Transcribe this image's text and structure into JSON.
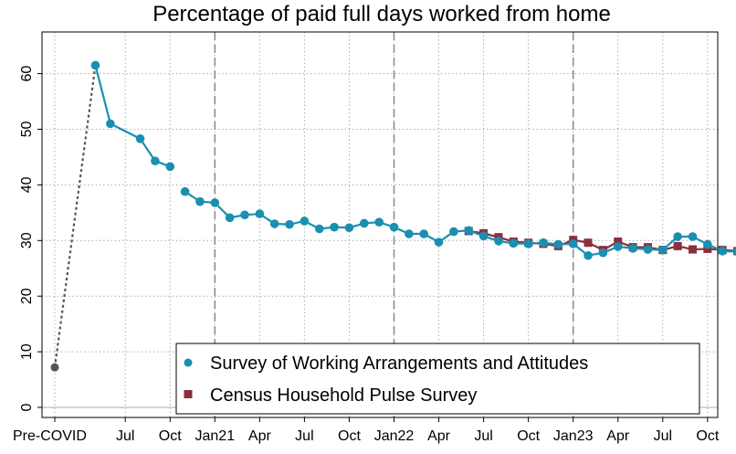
{
  "chart_data": {
    "type": "line",
    "title": "Percentage of paid full days worked from home",
    "xlabel": "",
    "ylabel": "",
    "ylim": [
      0,
      65
    ],
    "yticks": [
      0,
      10,
      20,
      30,
      40,
      50,
      60
    ],
    "grid": true,
    "legend_position": "bottom-right",
    "x_tick_labels": [
      "Pre-COVID",
      "Jul",
      "Oct",
      "Jan21",
      "Apr",
      "Jul",
      "Oct",
      "Jan22",
      "Apr",
      "Jul",
      "Oct",
      "Jan23",
      "Apr",
      "Jul",
      "Oct"
    ],
    "year_dividers": [
      "Jan21",
      "Jan22",
      "Jan23"
    ],
    "pre_covid": {
      "label": "Pre-COVID",
      "value": 7.2,
      "color": "#555555"
    },
    "series": [
      {
        "name": "Survey of Working Arrangements and Attitudes",
        "color": "#1a8fb0",
        "marker": "circle",
        "segments": [
          [
            {
              "x": "2020-05-15",
              "y": 61.5
            },
            {
              "x": "2020-06-15",
              "y": 51.0
            },
            {
              "x": "2020-08-15",
              "y": 48.3
            },
            {
              "x": "2020-09-15",
              "y": 44.3
            },
            {
              "x": "2020-10-15",
              "y": 43.3
            }
          ],
          [
            {
              "x": "2020-11-15",
              "y": 38.8
            },
            {
              "x": "2020-12-15",
              "y": 37.0
            },
            {
              "x": "2021-01-15",
              "y": 36.8
            },
            {
              "x": "2021-02-15",
              "y": 34.1
            },
            {
              "x": "2021-03-15",
              "y": 34.6
            },
            {
              "x": "2021-04-15",
              "y": 34.8
            },
            {
              "x": "2021-05-15",
              "y": 33.0
            },
            {
              "x": "2021-06-15",
              "y": 32.9
            },
            {
              "x": "2021-07-15",
              "y": 33.5
            },
            {
              "x": "2021-08-15",
              "y": 32.1
            },
            {
              "x": "2021-09-15",
              "y": 32.4
            },
            {
              "x": "2021-10-15",
              "y": 32.3
            },
            {
              "x": "2021-11-15",
              "y": 33.1
            },
            {
              "x": "2021-12-15",
              "y": 33.3
            },
            {
              "x": "2022-01-15",
              "y": 32.4
            },
            {
              "x": "2022-02-15",
              "y": 31.2
            },
            {
              "x": "2022-03-15",
              "y": 31.2
            },
            {
              "x": "2022-04-15",
              "y": 29.7
            },
            {
              "x": "2022-05-15",
              "y": 31.6
            },
            {
              "x": "2022-06-15",
              "y": 31.8
            },
            {
              "x": "2022-07-15",
              "y": 30.8
            },
            {
              "x": "2022-08-15",
              "y": 29.9
            },
            {
              "x": "2022-09-15",
              "y": 29.5
            },
            {
              "x": "2022-10-15",
              "y": 29.4
            },
            {
              "x": "2022-11-15",
              "y": 29.6
            },
            {
              "x": "2022-12-15",
              "y": 29.3
            },
            {
              "x": "2023-01-15",
              "y": 29.4
            },
            {
              "x": "2023-02-15",
              "y": 27.3
            },
            {
              "x": "2023-03-15",
              "y": 27.8
            },
            {
              "x": "2023-04-15",
              "y": 28.9
            },
            {
              "x": "2023-05-15",
              "y": 28.6
            },
            {
              "x": "2023-06-15",
              "y": 28.4
            },
            {
              "x": "2023-07-15",
              "y": 28.3
            },
            {
              "x": "2023-08-15",
              "y": 30.7
            },
            {
              "x": "2023-09-15",
              "y": 30.7
            },
            {
              "x": "2023-10-15",
              "y": 29.3
            },
            {
              "x": "2023-11-15",
              "y": 28.1
            },
            {
              "x": "2023-12-15",
              "y": 28.0
            }
          ]
        ]
      },
      {
        "name": "Census Household Pulse Survey",
        "color": "#8b2f3c",
        "marker": "square",
        "segments": [
          [
            {
              "x": "2022-06-15",
              "y": 31.7
            },
            {
              "x": "2022-07-15",
              "y": 31.3
            },
            {
              "x": "2022-08-15",
              "y": 30.6
            },
            {
              "x": "2022-09-15",
              "y": 29.8
            },
            {
              "x": "2022-10-15",
              "y": 29.6
            },
            {
              "x": "2022-11-15",
              "y": 29.4
            },
            {
              "x": "2022-12-15",
              "y": 29.0
            },
            {
              "x": "2023-01-15",
              "y": 30.1
            },
            {
              "x": "2023-02-15",
              "y": 29.6
            },
            {
              "x": "2023-03-15",
              "y": 28.3
            },
            {
              "x": "2023-04-15",
              "y": 29.8
            },
            {
              "x": "2023-05-15",
              "y": 28.8
            },
            {
              "x": "2023-06-15",
              "y": 28.8
            },
            {
              "x": "2023-07-15",
              "y": 28.3
            },
            {
              "x": "2023-08-15",
              "y": 29.0
            },
            {
              "x": "2023-09-15",
              "y": 28.4
            },
            {
              "x": "2023-10-15",
              "y": 28.5
            },
            {
              "x": "2023-11-15",
              "y": 28.3
            },
            {
              "x": "2023-12-15",
              "y": 28.1
            }
          ]
        ]
      }
    ]
  }
}
